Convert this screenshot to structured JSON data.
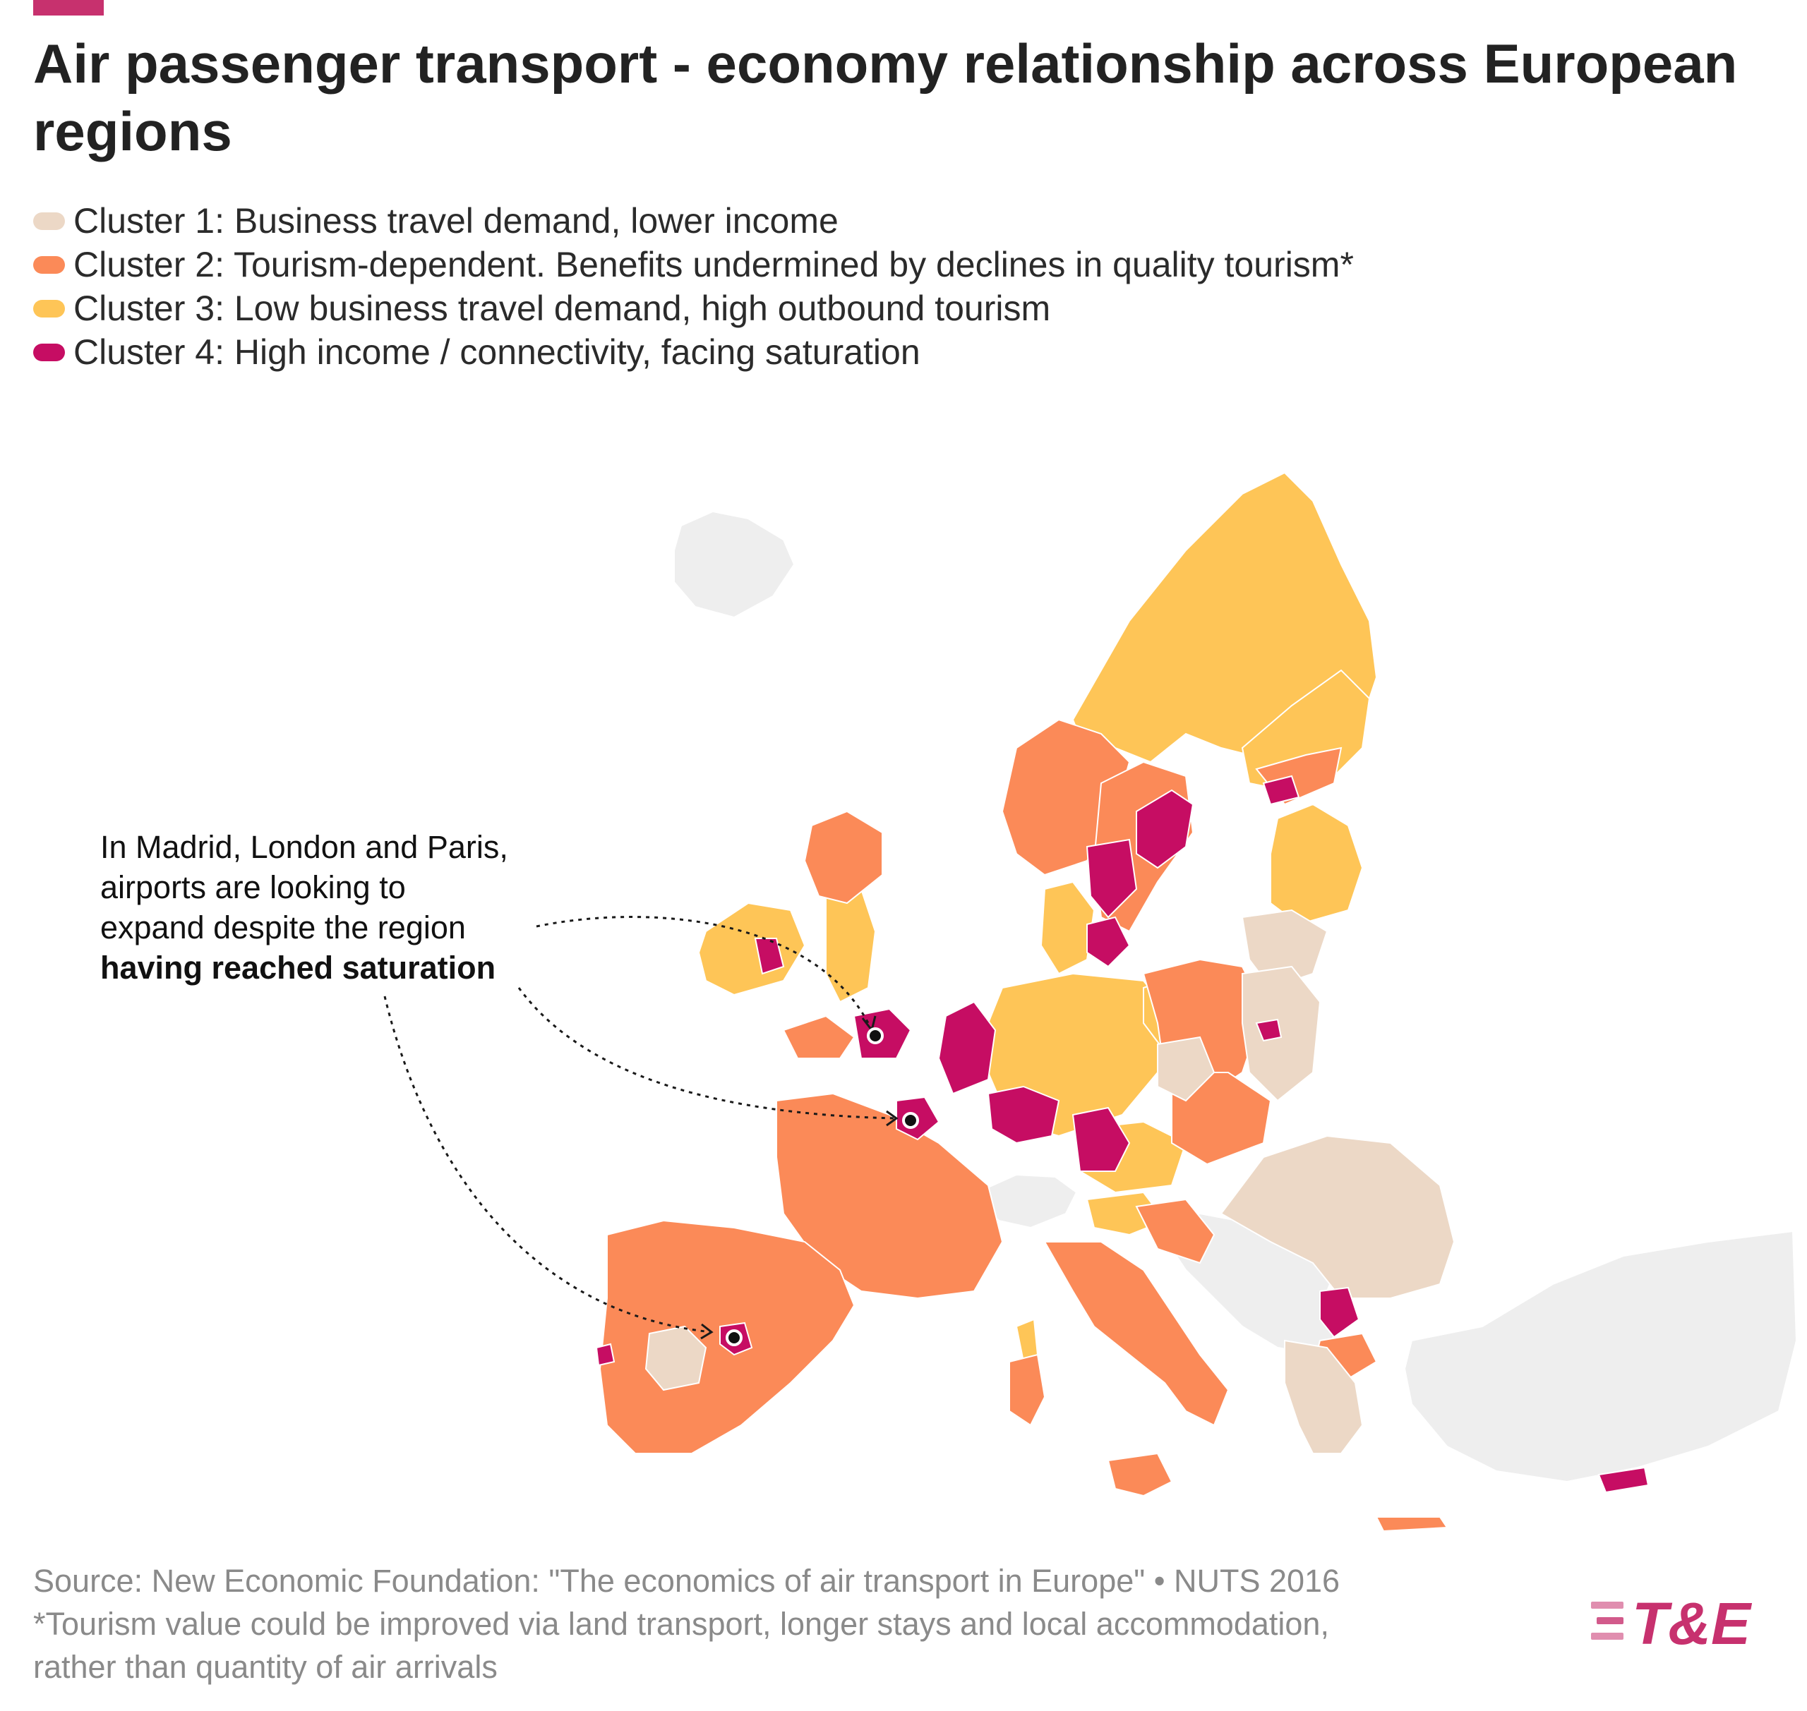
{
  "header": {
    "title": "Air passenger transport - economy relationship across European regions"
  },
  "legend": {
    "items": [
      {
        "label": "Cluster 1: Business travel demand, lower income",
        "color": "#ecd8c6"
      },
      {
        "label": "Cluster 2: Tourism-dependent. Benefits undermined by declines in quality tourism*",
        "color": "#fb8a58"
      },
      {
        "label": "Cluster 3: Low business travel demand, high outbound tourism",
        "color": "#fec557"
      },
      {
        "label": "Cluster 4: High income / connectivity, facing saturation",
        "color": "#c60d63"
      }
    ]
  },
  "map": {
    "no_data_color": "#eeeeee",
    "highlighted_airport_regions": [
      "Madrid",
      "London",
      "Paris"
    ]
  },
  "annotation": {
    "line1": "In Madrid, London and Paris,",
    "line2": "airports are looking to",
    "line3": "expand despite the region",
    "line4_bold": "having reached saturation"
  },
  "footer": {
    "source": "Source: New Economic Foundation: \"The economics of air transport in Europe\" • NUTS 2016",
    "note1": "*Tourism value could be improved via land transport, longer stays and local accommodation,",
    "note2": "rather than quantity of air arrivals"
  },
  "logo": {
    "text": "T&E",
    "color": "#c7316e"
  }
}
